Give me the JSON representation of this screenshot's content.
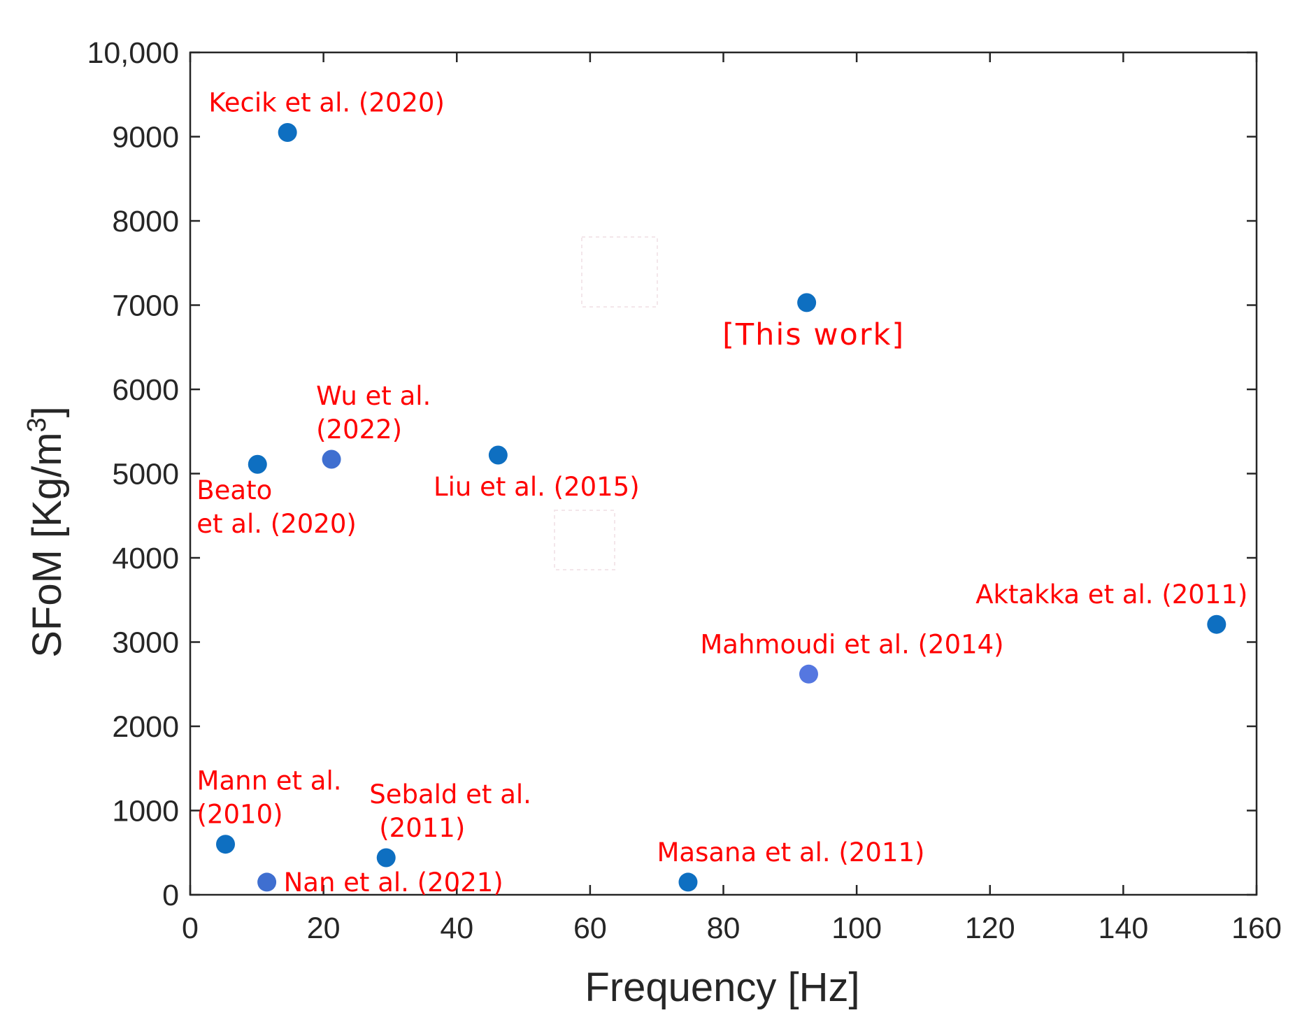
{
  "chart_data": {
    "type": "scatter",
    "title": "",
    "xlabel": "Frequency [Hz]",
    "ylabel": "SFoM [Kg/m",
    "ylabel_superscript": "3",
    "ylabel_suffix": "]",
    "xlim": [
      0,
      160
    ],
    "ylim": [
      0,
      10000
    ],
    "x_ticks": [
      0,
      20,
      40,
      60,
      80,
      100,
      120,
      140,
      160
    ],
    "y_ticks": [
      0,
      1000,
      2000,
      3000,
      4000,
      5000,
      6000,
      7000,
      8000,
      9000,
      10000
    ],
    "x_tick_labels": [
      "0",
      "20",
      "40",
      "60",
      "80",
      "100",
      "120",
      "140",
      "160"
    ],
    "y_tick_labels": [
      "0",
      "1000",
      "2000",
      "3000",
      "4000",
      "5000",
      "6000",
      "7000",
      "8000",
      "9000",
      "10,000"
    ],
    "grid": false,
    "colors": {
      "marker_primary": "#0e6fc1",
      "marker_secondary": "#3f6fd0",
      "marker_tertiary": "#5577e0",
      "annotation": "#ff0000",
      "axis": "#262626"
    },
    "points": [
      {
        "x": 14.6,
        "y": 9050,
        "color": "#0e6fc1",
        "label": [
          "Kecik et al. (2020)"
        ],
        "label_pos": "above"
      },
      {
        "x": 92.5,
        "y": 7030,
        "color": "#0e6fc1",
        "label": [
          "[This work]"
        ],
        "label_pos": "below",
        "emphasis": true
      },
      {
        "x": 10.1,
        "y": 5110,
        "color": "#0e6fc1",
        "label": [
          "Beato",
          "et al. (2020)"
        ],
        "label_pos": "below"
      },
      {
        "x": 21.2,
        "y": 5170,
        "color": "#3f6fd0",
        "label": [
          "Wu et al.",
          "(2022)"
        ],
        "label_pos": "above"
      },
      {
        "x": 46.2,
        "y": 5220,
        "color": "#0e6fc1",
        "label": [
          "Liu et al. (2015)"
        ],
        "label_pos": "below"
      },
      {
        "x": 154.0,
        "y": 3210,
        "color": "#0e6fc1",
        "label": [
          "Aktakka et al. (2011)"
        ],
        "label_pos": "above"
      },
      {
        "x": 92.8,
        "y": 2620,
        "color": "#5577e0",
        "label": [
          "Mahmoudi et al. (2014)"
        ],
        "label_pos": "above"
      },
      {
        "x": 5.3,
        "y": 600,
        "color": "#0e6fc1",
        "label": [
          "Mann et al.",
          "(2010)"
        ],
        "label_pos": "above"
      },
      {
        "x": 11.5,
        "y": 150,
        "color": "#3f6fd0",
        "label": [
          "Nan et al. (2021)"
        ],
        "label_pos": "right"
      },
      {
        "x": 29.4,
        "y": 440,
        "color": "#0e6fc1",
        "label": [
          "Sebald et al.",
          "(2011)"
        ],
        "label_pos": "above"
      },
      {
        "x": 74.7,
        "y": 150,
        "color": "#0e6fc1",
        "label": [
          "Masana et al. (2011)"
        ],
        "label_pos": "above"
      }
    ]
  }
}
